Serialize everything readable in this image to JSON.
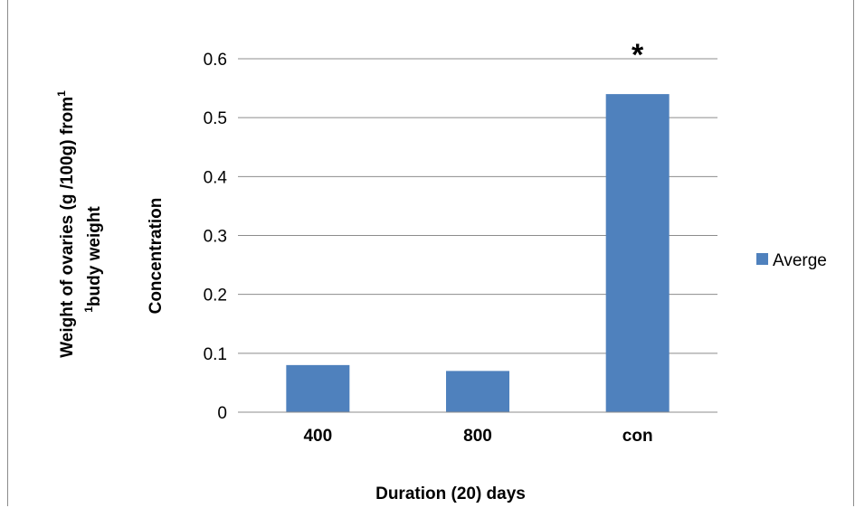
{
  "chart_data": {
    "type": "bar",
    "categories": [
      "400",
      "800",
      "con"
    ],
    "series": [
      {
        "name": "Averge",
        "values": [
          0.08,
          0.07,
          0.54
        ],
        "color": "#4F81BD"
      }
    ],
    "ylim": [
      0,
      0.6
    ],
    "yticks": [
      "0",
      "0.1",
      "0.2",
      "0.3",
      "0.4",
      "0.5",
      "0.6"
    ],
    "ytick_values": [
      0,
      0.1,
      0.2,
      0.3,
      0.4,
      0.5,
      0.6
    ],
    "ylabel_line1": "Weight of ovaries (g /100g) from",
    "ylabel_line2": "budy weight",
    "ylabel_sup1": "1",
    "ylabel_sup2": "1",
    "ylabel_secondary": "Concentration",
    "xlabel": "Duration  (20) days",
    "annotations": [
      {
        "category": "con",
        "text": "*"
      }
    ],
    "grid": true,
    "legend_position": "right"
  }
}
